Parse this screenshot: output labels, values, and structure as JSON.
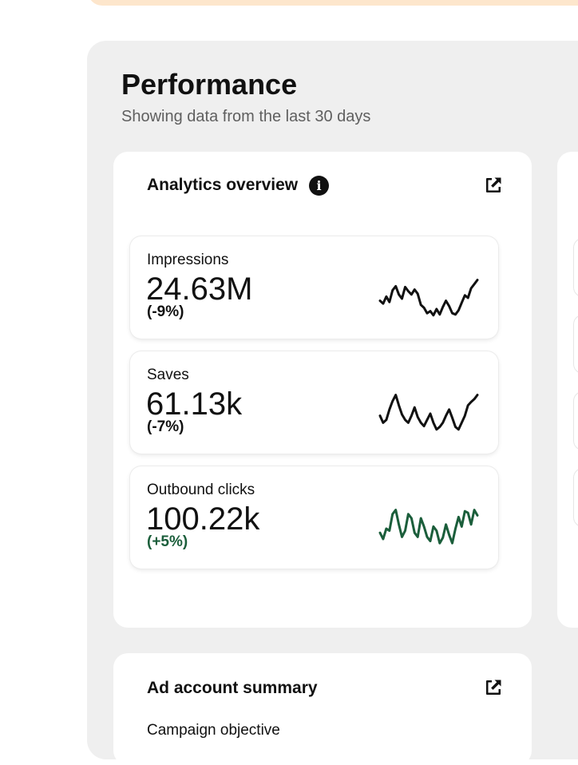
{
  "performance": {
    "title": "Performance",
    "subtitle": "Showing data from the last 30 days"
  },
  "analytics": {
    "title": "Analytics overview",
    "info_icon": "info-icon",
    "open_icon": "external-link-icon",
    "metrics": [
      {
        "label": "Impressions",
        "value": "24.63M",
        "change": "(-9%)",
        "trend": "down",
        "color": "#111111",
        "spark": [
          0.45,
          0.38,
          0.55,
          0.42,
          0.7,
          0.8,
          0.6,
          0.5,
          0.78,
          0.68,
          0.6,
          0.72,
          0.62,
          0.35,
          0.28,
          0.15,
          0.2,
          0.1,
          0.25,
          0.12,
          0.3,
          0.45,
          0.32,
          0.15,
          0.12,
          0.22,
          0.4,
          0.58,
          0.52,
          0.75,
          0.85,
          0.95
        ]
      },
      {
        "label": "Saves",
        "value": "61.13k",
        "change": "(-7%)",
        "trend": "down",
        "color": "#111111",
        "spark": [
          0.45,
          0.28,
          0.35,
          0.6,
          0.8,
          0.95,
          0.7,
          0.48,
          0.35,
          0.28,
          0.45,
          0.65,
          0.42,
          0.28,
          0.2,
          0.35,
          0.5,
          0.28,
          0.12,
          0.18,
          0.28,
          0.45,
          0.6,
          0.4,
          0.18,
          0.12,
          0.28,
          0.45,
          0.7,
          0.78,
          0.85,
          0.95
        ]
      },
      {
        "label": "Outbound clicks",
        "value": "100.22k",
        "change": "(+5%)",
        "trend": "up",
        "color": "#1b5e3b",
        "spark": [
          0.4,
          0.25,
          0.5,
          0.45,
          0.85,
          0.95,
          0.6,
          0.3,
          0.45,
          0.85,
          0.75,
          0.4,
          0.3,
          0.75,
          0.55,
          0.3,
          0.2,
          0.55,
          0.45,
          0.15,
          0.28,
          0.6,
          0.35,
          0.15,
          0.5,
          0.78,
          0.55,
          0.92,
          0.88,
          0.6,
          0.95,
          0.82
        ]
      }
    ]
  },
  "ad_account": {
    "title": "Ad account summary",
    "open_icon": "external-link-icon",
    "first_row_label_partial": "Campaign objective"
  },
  "colors": {
    "banner": "#fde6cc",
    "panel": "#efefef",
    "card": "#ffffff",
    "positive": "#1b5e3b",
    "neutral": "#111111"
  }
}
